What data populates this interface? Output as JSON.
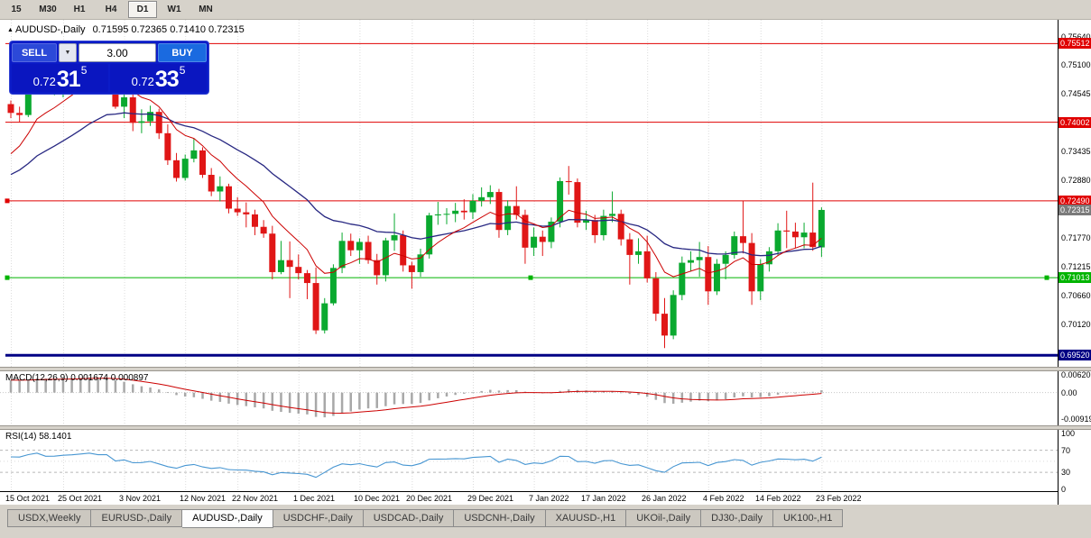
{
  "toolbar": {
    "timeframes": [
      "15",
      "M30",
      "H1",
      "H4",
      "D1",
      "W1",
      "MN"
    ],
    "active": "D1"
  },
  "chart_header": {
    "collapse_icon": "▲",
    "title": "AUDUSD-,Daily",
    "ohlc": "0.71595 0.72365 0.71410 0.72315"
  },
  "trade_panel": {
    "sell_label": "SELL",
    "buy_label": "BUY",
    "volume": "3.00",
    "dropdown_icon": "▼",
    "bid": {
      "main": "0.72",
      "pips": "31",
      "frac": "5"
    },
    "ask": {
      "main": "0.72",
      "pips": "33",
      "frac": "5"
    }
  },
  "tabs": {
    "items": [
      "USDX,Weekly",
      "EURUSD-,Daily",
      "AUDUSD-,Daily",
      "USDCHF-,Daily",
      "USDCAD-,Daily",
      "USDCNH-,Daily",
      "XAUUSD-,H1",
      "UKOil-,Daily",
      "DJ30-,Daily",
      "UK100-,H1"
    ],
    "active": "AUDUSD-,Daily"
  },
  "chart_data": {
    "type": "candlestick",
    "symbol": "AUDUSD-",
    "timeframe": "Daily",
    "ohlc_current": {
      "open": 0.71595,
      "high": 0.72365,
      "low": 0.7141,
      "close": 0.72315
    },
    "current_price": 0.72315,
    "colors": {
      "bull": "#0aa92f",
      "bear": "#e01616",
      "ma_fast": "#cc0000",
      "ma_slow": "#282882",
      "macd_hist": "#a8a8a8",
      "macd_signal": "#cc0000",
      "rsi_line": "#4796d2",
      "grid": "#dcdcdc"
    },
    "y_axis": {
      "range": [
        0.693,
        0.7597
      ],
      "ticks": [
        "0.75640",
        "0.75100",
        "0.74545",
        "0.73435",
        "0.72880",
        "0.71770",
        "0.71215",
        "0.70660",
        "0.70120"
      ],
      "badges": [
        {
          "label": "0.75512",
          "color": "#e00000"
        },
        {
          "label": "0.74002",
          "color": "#e00000"
        },
        {
          "label": "0.72490",
          "color": "#e00000"
        },
        {
          "label": "0.72315",
          "color": "#7a7a7a"
        },
        {
          "label": "0.71013",
          "color": "#00b400"
        },
        {
          "label": "0.69520",
          "color": "#000084"
        }
      ]
    },
    "hlines": [
      {
        "price": 0.75512,
        "color": "#e00000",
        "width": 1
      },
      {
        "price": 0.74002,
        "color": "#e00000",
        "width": 1
      },
      {
        "price": 0.7249,
        "color": "#e00000",
        "width": 1,
        "markers": [
          "left"
        ]
      },
      {
        "price": 0.71013,
        "color": "#00b400",
        "width": 1,
        "markers": [
          "left",
          "mid",
          "right"
        ]
      },
      {
        "price": 0.6952,
        "color": "#000084",
        "width": 3
      }
    ],
    "x_labels": [
      {
        "i": 0,
        "t": "15 Oct 2021"
      },
      {
        "i": 6,
        "t": "25 Oct 2021"
      },
      {
        "i": 13,
        "t": "3 Nov 2021"
      },
      {
        "i": 20,
        "t": "12 Nov 2021"
      },
      {
        "i": 26,
        "t": "22 Nov 2021"
      },
      {
        "i": 33,
        "t": "1 Dec 2021"
      },
      {
        "i": 40,
        "t": "10 Dec 2021"
      },
      {
        "i": 46,
        "t": "20 Dec 2021"
      },
      {
        "i": 53,
        "t": "29 Dec 2021"
      },
      {
        "i": 60,
        "t": "7 Jan 2022"
      },
      {
        "i": 66,
        "t": "17 Jan 2022"
      },
      {
        "i": 73,
        "t": "26 Jan 2022"
      },
      {
        "i": 80,
        "t": "4 Feb 2022"
      },
      {
        "i": 86,
        "t": "14 Feb 2022"
      },
      {
        "i": 93,
        "t": "23 Feb 2022"
      }
    ],
    "candles": [
      [
        0.7435,
        0.7442,
        0.7408,
        0.7418
      ],
      [
        0.7418,
        0.743,
        0.74,
        0.7414
      ],
      [
        0.7414,
        0.7478,
        0.741,
        0.7474
      ],
      [
        0.7474,
        0.7525,
        0.7468,
        0.7518
      ],
      [
        0.7518,
        0.7547,
        0.7458,
        0.7465
      ],
      [
        0.7465,
        0.749,
        0.7452,
        0.7468
      ],
      [
        0.7468,
        0.75,
        0.7448,
        0.7488
      ],
      [
        0.7488,
        0.7528,
        0.7478,
        0.75
      ],
      [
        0.75,
        0.7537,
        0.7486,
        0.7518
      ],
      [
        0.7518,
        0.755,
        0.7498,
        0.7539
      ],
      [
        0.7539,
        0.7555,
        0.7508,
        0.7518
      ],
      [
        0.7518,
        0.7535,
        0.7493,
        0.7521
      ],
      [
        0.7521,
        0.7526,
        0.7426,
        0.743
      ],
      [
        0.743,
        0.7457,
        0.7408,
        0.7448
      ],
      [
        0.7448,
        0.7455,
        0.7383,
        0.7399
      ],
      [
        0.7399,
        0.7425,
        0.7379,
        0.7402
      ],
      [
        0.7402,
        0.7432,
        0.7393,
        0.742
      ],
      [
        0.742,
        0.7426,
        0.7368,
        0.7379
      ],
      [
        0.7379,
        0.7396,
        0.7318,
        0.7327
      ],
      [
        0.7327,
        0.7341,
        0.7286,
        0.7293
      ],
      [
        0.7293,
        0.7338,
        0.7288,
        0.733
      ],
      [
        0.733,
        0.7369,
        0.7323,
        0.7346
      ],
      [
        0.7346,
        0.7352,
        0.7293,
        0.7299
      ],
      [
        0.7299,
        0.7312,
        0.7258,
        0.7267
      ],
      [
        0.7267,
        0.7296,
        0.7248,
        0.7277
      ],
      [
        0.7277,
        0.7282,
        0.7225,
        0.7234
      ],
      [
        0.7234,
        0.7256,
        0.722,
        0.7227
      ],
      [
        0.7227,
        0.7246,
        0.7198,
        0.7223
      ],
      [
        0.7223,
        0.7232,
        0.7183,
        0.7199
      ],
      [
        0.7199,
        0.7212,
        0.7178,
        0.7186
      ],
      [
        0.7186,
        0.7201,
        0.7098,
        0.7112
      ],
      [
        0.7112,
        0.7172,
        0.7108,
        0.7135
      ],
      [
        0.7135,
        0.7171,
        0.7062,
        0.7122
      ],
      [
        0.7122,
        0.7146,
        0.7098,
        0.711
      ],
      [
        0.711,
        0.7116,
        0.706,
        0.7091
      ],
      [
        0.7091,
        0.7121,
        0.6993,
        0.7
      ],
      [
        0.7,
        0.7062,
        0.6994,
        0.7052
      ],
      [
        0.7052,
        0.7127,
        0.7048,
        0.712
      ],
      [
        0.712,
        0.7188,
        0.711,
        0.7172
      ],
      [
        0.7172,
        0.7186,
        0.7143,
        0.7154
      ],
      [
        0.7154,
        0.7177,
        0.7128,
        0.717
      ],
      [
        0.717,
        0.7182,
        0.7128,
        0.7135
      ],
      [
        0.7135,
        0.7147,
        0.7088,
        0.7106
      ],
      [
        0.7106,
        0.7178,
        0.7094,
        0.7173
      ],
      [
        0.7173,
        0.7225,
        0.7153,
        0.7183
      ],
      [
        0.7183,
        0.7192,
        0.7113,
        0.7125
      ],
      [
        0.7125,
        0.7132,
        0.708,
        0.7112
      ],
      [
        0.7112,
        0.7157,
        0.7103,
        0.7146
      ],
      [
        0.7146,
        0.7226,
        0.7138,
        0.7221
      ],
      [
        0.7221,
        0.7247,
        0.7203,
        0.7223
      ],
      [
        0.7223,
        0.7235,
        0.7204,
        0.7224
      ],
      [
        0.7224,
        0.7245,
        0.7208,
        0.723
      ],
      [
        0.723,
        0.7252,
        0.7213,
        0.7227
      ],
      [
        0.7227,
        0.7262,
        0.7214,
        0.7249
      ],
      [
        0.7249,
        0.7275,
        0.7238,
        0.7256
      ],
      [
        0.7256,
        0.7279,
        0.7243,
        0.7266
      ],
      [
        0.7266,
        0.7272,
        0.7178,
        0.7193
      ],
      [
        0.7193,
        0.725,
        0.7183,
        0.7239
      ],
      [
        0.7239,
        0.7277,
        0.7213,
        0.7222
      ],
      [
        0.7222,
        0.7232,
        0.7128,
        0.7159
      ],
      [
        0.7159,
        0.7198,
        0.7143,
        0.718
      ],
      [
        0.718,
        0.7192,
        0.7143,
        0.717
      ],
      [
        0.717,
        0.7217,
        0.7158,
        0.7209
      ],
      [
        0.7209,
        0.7294,
        0.7198,
        0.7287
      ],
      [
        0.7287,
        0.7316,
        0.7261,
        0.7285
      ],
      [
        0.7285,
        0.7292,
        0.7198,
        0.7207
      ],
      [
        0.7207,
        0.723,
        0.7193,
        0.7212
      ],
      [
        0.7212,
        0.7222,
        0.7168,
        0.7183
      ],
      [
        0.7183,
        0.7232,
        0.7173,
        0.722
      ],
      [
        0.722,
        0.7267,
        0.7208,
        0.7224
      ],
      [
        0.7224,
        0.7232,
        0.7163,
        0.7175
      ],
      [
        0.7175,
        0.7187,
        0.7088,
        0.7145
      ],
      [
        0.7145,
        0.7177,
        0.7128,
        0.7152
      ],
      [
        0.7152,
        0.7182,
        0.7092,
        0.71
      ],
      [
        0.71,
        0.7112,
        0.7018,
        0.7032
      ],
      [
        0.7032,
        0.7062,
        0.6966,
        0.699
      ],
      [
        0.699,
        0.7077,
        0.6983,
        0.7068
      ],
      [
        0.7068,
        0.7142,
        0.7058,
        0.713
      ],
      [
        0.713,
        0.7152,
        0.7113,
        0.7135
      ],
      [
        0.7135,
        0.717,
        0.7103,
        0.7141
      ],
      [
        0.7141,
        0.7162,
        0.7049,
        0.7075
      ],
      [
        0.7075,
        0.7137,
        0.7068,
        0.7128
      ],
      [
        0.7128,
        0.7152,
        0.7098,
        0.7145
      ],
      [
        0.7145,
        0.719,
        0.7138,
        0.7181
      ],
      [
        0.7181,
        0.7249,
        0.7148,
        0.7168
      ],
      [
        0.7168,
        0.7187,
        0.7049,
        0.7075
      ],
      [
        0.7075,
        0.7137,
        0.7058,
        0.7127
      ],
      [
        0.7127,
        0.716,
        0.7113,
        0.7152
      ],
      [
        0.7152,
        0.7206,
        0.7143,
        0.7192
      ],
      [
        0.7192,
        0.723,
        0.7158,
        0.719
      ],
      [
        0.719,
        0.7207,
        0.7158,
        0.7179
      ],
      [
        0.7179,
        0.7207,
        0.7158,
        0.7188
      ],
      [
        0.7188,
        0.7284,
        0.7153,
        0.716
      ],
      [
        0.71595,
        0.72365,
        0.7141,
        0.72315
      ]
    ],
    "macd": {
      "display": "MACD(12,26,9) 0.001674 0.000897",
      "main": 0.001674,
      "signal": 0.000897,
      "range": [
        -0.0115,
        0.0075
      ],
      "ticks": [
        "0.00620",
        "0.00",
        "-0.00919"
      ]
    },
    "rsi": {
      "display": "RSI(14) 58.1401",
      "value": 58.1401,
      "range": [
        0,
        100
      ],
      "ticks": [
        "100",
        "70",
        "30",
        "0"
      ],
      "levels": [
        70,
        30
      ]
    }
  }
}
